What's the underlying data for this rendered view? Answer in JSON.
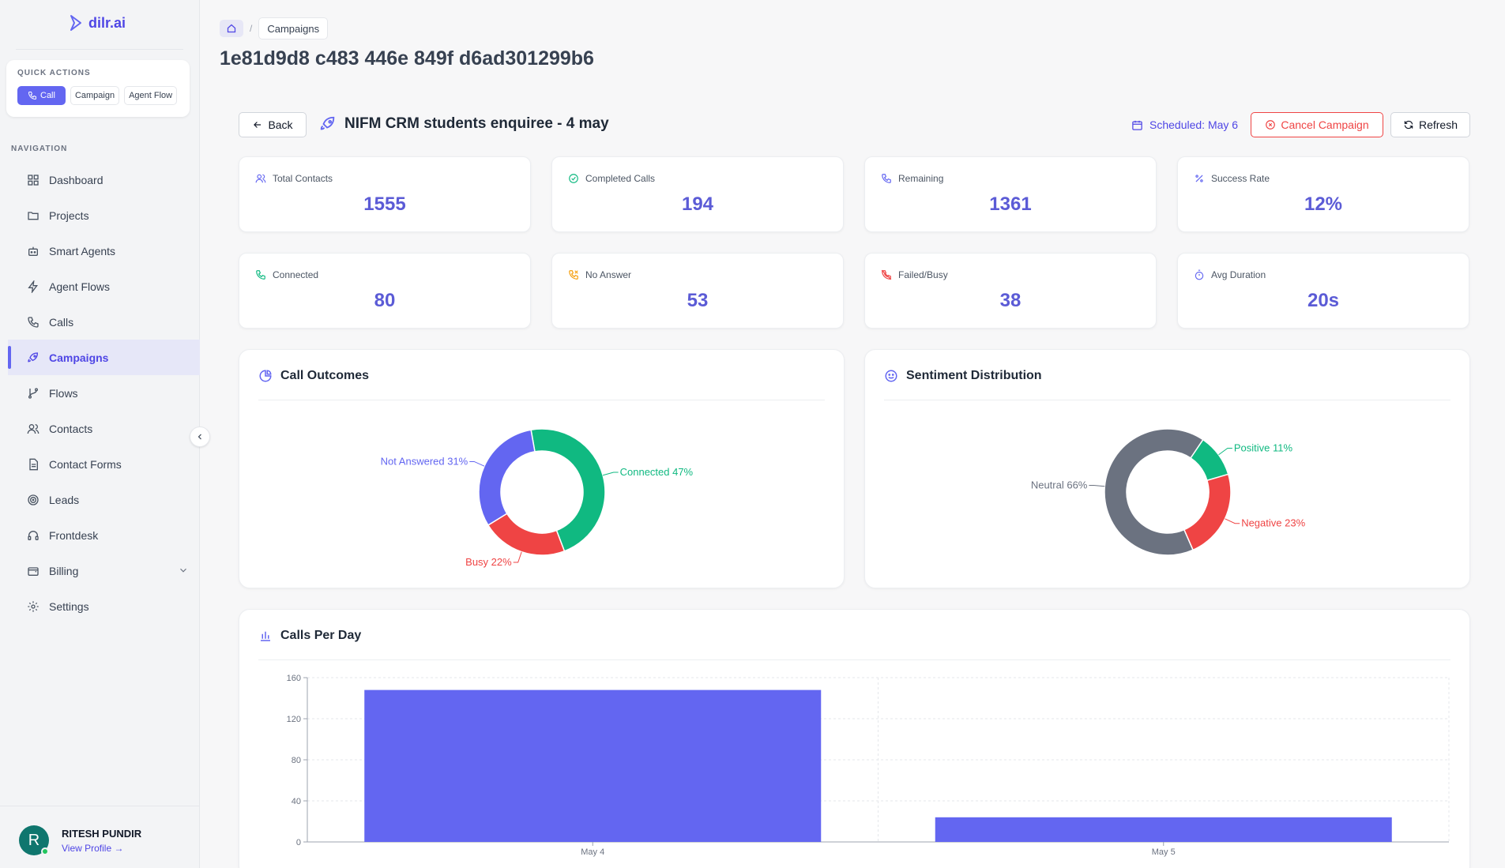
{
  "brand": {
    "name": "dilr.ai"
  },
  "quick_actions": {
    "title": "QUICK ACTIONS",
    "buttons": [
      "Call",
      "Campaign",
      "Agent Flow"
    ]
  },
  "nav": {
    "title": "NAVIGATION",
    "items": [
      "Dashboard",
      "Projects",
      "Smart Agents",
      "Agent Flows",
      "Calls",
      "Campaigns",
      "Flows",
      "Contacts",
      "Contact Forms",
      "Leads",
      "Frontdesk",
      "Billing",
      "Settings"
    ],
    "active": "Campaigns"
  },
  "user": {
    "initial": "R",
    "name": "RITESH PUNDIR",
    "view_profile": "View Profile →"
  },
  "breadcrumb": {
    "current": "Campaigns"
  },
  "page": {
    "title": "1e81d9d8 c483 446e 849f d6ad301299b6"
  },
  "campaign": {
    "back_label": "Back",
    "name": "NIFM CRM students enquiree - 4 may",
    "scheduled": "Scheduled: May 6",
    "cancel_label": "Cancel Campaign",
    "refresh_label": "Refresh"
  },
  "stats": [
    {
      "label": "Total Contacts",
      "value": "1555",
      "icon": "users-icon"
    },
    {
      "label": "Completed Calls",
      "value": "194",
      "icon": "check-circle-icon"
    },
    {
      "label": "Remaining",
      "value": "1361",
      "icon": "phone-icon"
    },
    {
      "label": "Success Rate",
      "value": "12%",
      "icon": "percent-icon"
    },
    {
      "label": "Connected",
      "value": "80",
      "icon": "phone-connected-icon"
    },
    {
      "label": "No Answer",
      "value": "53",
      "icon": "phone-missed-icon"
    },
    {
      "label": "Failed/Busy",
      "value": "38",
      "icon": "phone-off-icon"
    },
    {
      "label": "Avg Duration",
      "value": "20s",
      "icon": "timer-icon"
    }
  ],
  "colors": {
    "accent": "#6366f1",
    "green": "#10b981",
    "red": "#ef4444",
    "gray": "#6b7280"
  },
  "chart_data": [
    {
      "type": "pie",
      "title": "Call Outcomes",
      "slices": [
        {
          "label": "Connected 47%",
          "value": 47,
          "color": "#10b981"
        },
        {
          "label": "Busy 22%",
          "value": 22,
          "color": "#ef4444"
        },
        {
          "label": "Not Answered 31%",
          "value": 31,
          "color": "#6366f1"
        }
      ]
    },
    {
      "type": "pie",
      "title": "Sentiment Distribution",
      "slices": [
        {
          "label": "Positive 11%",
          "value": 11,
          "color": "#10b981"
        },
        {
          "label": "Negative 23%",
          "value": 23,
          "color": "#ef4444"
        },
        {
          "label": "Neutral 66%",
          "value": 66,
          "color": "#6b7280"
        }
      ]
    },
    {
      "type": "bar",
      "title": "Calls Per Day",
      "categories": [
        "May 4",
        "May 5"
      ],
      "values": [
        148,
        24
      ],
      "ylim": [
        0,
        160
      ],
      "yticks": [
        0,
        40,
        80,
        120,
        160
      ],
      "color": "#6366f1",
      "grid": true
    }
  ]
}
